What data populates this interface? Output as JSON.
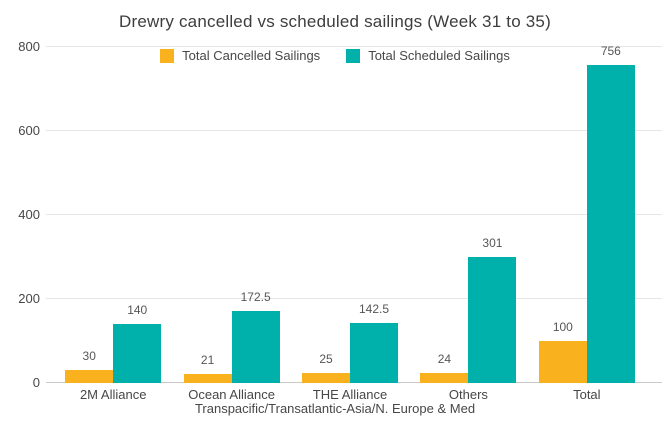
{
  "chart_data": {
    "type": "bar",
    "title": "Drewry cancelled vs scheduled sailings (Week 31 to 35)",
    "categories": [
      "2M Alliance",
      "Ocean Alliance",
      "THE Alliance",
      "Others",
      "Total"
    ],
    "series": [
      {
        "name": "Total Cancelled Sailings",
        "color": "#F9B11E",
        "values": [
          30,
          21,
          25,
          24,
          100
        ],
        "labels": [
          "30",
          "21",
          "25",
          "24",
          "100"
        ]
      },
      {
        "name": "Total Scheduled Sailings",
        "color": "#00B1AB",
        "values": [
          140,
          172.5,
          142.5,
          301,
          756
        ],
        "labels": [
          "140",
          "172.5",
          "142.5",
          "301",
          "756"
        ]
      }
    ],
    "xlabel": "Transpacific/Transatlantic-Asia/N. Europe & Med",
    "ylabel": "",
    "ylim": [
      0,
      800
    ],
    "yticks": [
      0,
      200,
      400,
      600,
      800
    ],
    "grid": true,
    "legend_position": "top",
    "background": "#ffffff",
    "gridline_color": "#e6e6e6",
    "axis_line_color": "#c9c9c9",
    "value_label_color": "#565656",
    "text_color": "#474747"
  }
}
